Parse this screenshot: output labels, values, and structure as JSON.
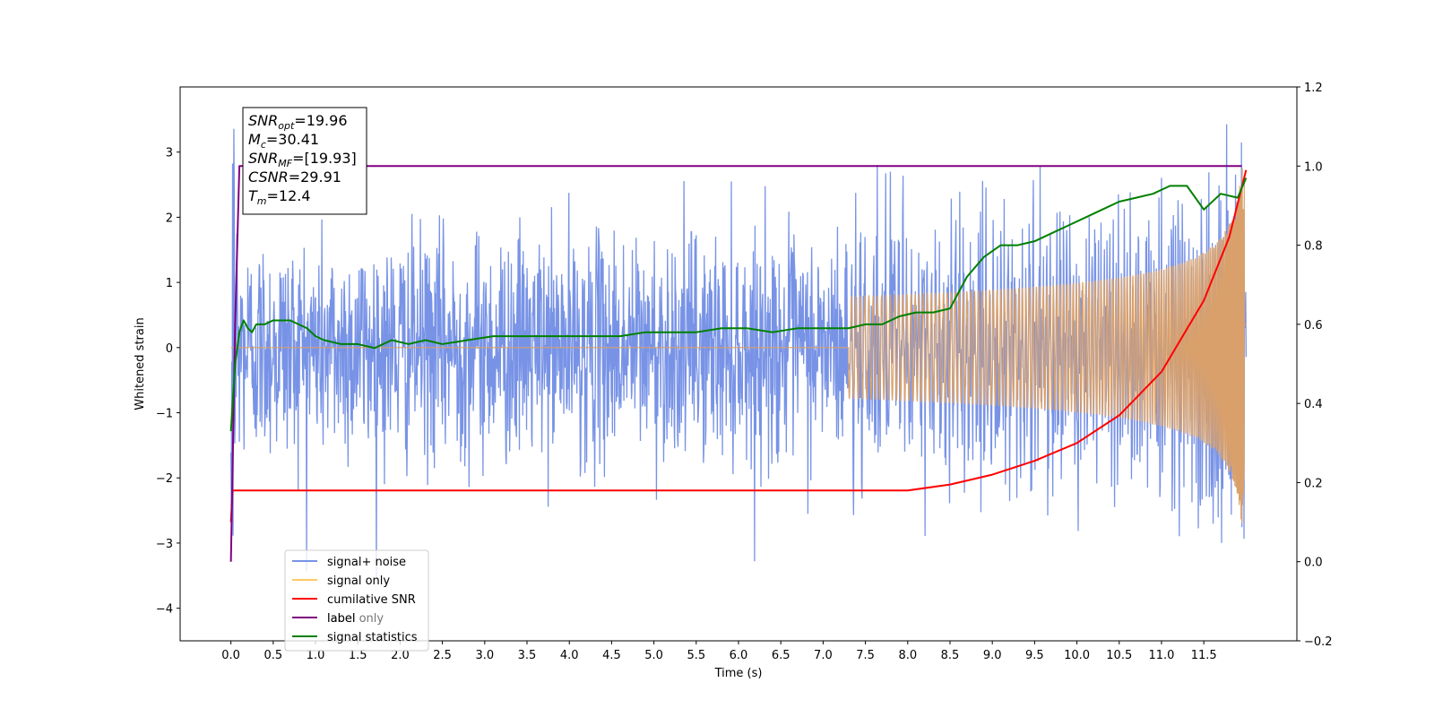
{
  "chart_data": {
    "type": "line",
    "xlabel": "Time (s)",
    "ylabel_left": "Whitened strain",
    "ylabel_right": "",
    "xlim": [
      -0.6,
      12.6
    ],
    "ylim_left": [
      -4.5,
      4.0
    ],
    "ylim_right": [
      -0.2,
      1.2
    ],
    "x_ticks": [
      "0.0",
      "0.5",
      "1.0",
      "1.5",
      "2.0",
      "2.5",
      "3.0",
      "3.5",
      "4.0",
      "4.5",
      "5.0",
      "5.5",
      "6.0",
      "6.5",
      "7.0",
      "7.5",
      "8.0",
      "8.5",
      "9.0",
      "9.5",
      "10.0",
      "10.5",
      "11.0",
      "11.5"
    ],
    "y_ticks_left": [
      "3",
      "2",
      "1",
      "0",
      "−1",
      "−2",
      "−3",
      "−4"
    ],
    "y_ticks_right": [
      "1.2",
      "1.0",
      "0.8",
      "0.6",
      "0.4",
      "0.2",
      "0.0",
      "−0.2"
    ],
    "legend_position": "lower-left",
    "legend_entries": [
      "signal+ noise",
      "signal only",
      "cumilative SNR",
      "label",
      "signal statistics"
    ],
    "overlapped_legend_text": "label only",
    "annotation": {
      "lines": [
        {
          "label": "SNR",
          "sub": "opt",
          "value": "=19.96"
        },
        {
          "label": "M",
          "sub": "c",
          "value": "=30.41"
        },
        {
          "label": "SNR",
          "sub": "MF",
          "value": "=[19.93]"
        },
        {
          "label": "CSNR",
          "sub": "",
          "value": "=29.91"
        },
        {
          "label": "T",
          "sub": "m",
          "value": "=12.4"
        }
      ]
    },
    "series": [
      {
        "name": "signal+ noise",
        "axis": "left",
        "color": "#7893e6",
        "duration": 12.0,
        "noise_sigma": 0.85,
        "max_abs": 3.6
      },
      {
        "name": "signal only",
        "axis": "left",
        "color": "#d9a06b",
        "chirp_start": 7.3,
        "end_amplitude": 2.8
      },
      {
        "name": "cumilative SNR",
        "axis": "right",
        "color": "#ff0000",
        "x": [
          0.0,
          0.02,
          8.0,
          8.5,
          9.0,
          9.5,
          10.0,
          10.5,
          11.0,
          11.5,
          11.8,
          12.0
        ],
        "y": [
          0.1,
          0.18,
          0.18,
          0.195,
          0.22,
          0.255,
          0.3,
          0.37,
          0.48,
          0.66,
          0.82,
          0.99
        ]
      },
      {
        "name": "label",
        "axis": "right",
        "color": "#800080",
        "x": [
          0.0,
          0.05,
          0.1,
          11.0,
          11.95
        ],
        "y": [
          0.0,
          0.6,
          1.0,
          1.0,
          1.0
        ]
      },
      {
        "name": "signal statistics",
        "axis": "right",
        "color": "#008000",
        "x": [
          0.0,
          0.05,
          0.1,
          0.15,
          0.2,
          0.25,
          0.3,
          0.4,
          0.5,
          0.6,
          0.7,
          0.8,
          0.9,
          1.0,
          1.1,
          1.3,
          1.5,
          1.7,
          1.9,
          2.1,
          2.3,
          2.5,
          2.8,
          3.1,
          3.4,
          3.7,
          4.0,
          4.3,
          4.6,
          4.9,
          5.2,
          5.5,
          5.8,
          6.1,
          6.4,
          6.7,
          7.0,
          7.3,
          7.5,
          7.7,
          7.9,
          8.1,
          8.3,
          8.5,
          8.7,
          8.9,
          9.1,
          9.3,
          9.5,
          9.7,
          9.9,
          10.1,
          10.3,
          10.5,
          10.7,
          10.9,
          11.1,
          11.3,
          11.5,
          11.7,
          11.9,
          12.0
        ],
        "y": [
          0.33,
          0.5,
          0.58,
          0.61,
          0.59,
          0.58,
          0.6,
          0.6,
          0.61,
          0.61,
          0.61,
          0.6,
          0.59,
          0.57,
          0.56,
          0.55,
          0.55,
          0.54,
          0.56,
          0.55,
          0.56,
          0.55,
          0.56,
          0.57,
          0.57,
          0.57,
          0.57,
          0.57,
          0.57,
          0.58,
          0.58,
          0.58,
          0.59,
          0.59,
          0.58,
          0.59,
          0.59,
          0.59,
          0.6,
          0.6,
          0.62,
          0.63,
          0.63,
          0.64,
          0.72,
          0.77,
          0.8,
          0.8,
          0.81,
          0.83,
          0.85,
          0.87,
          0.89,
          0.91,
          0.92,
          0.93,
          0.95,
          0.95,
          0.89,
          0.93,
          0.92,
          0.97
        ]
      }
    ]
  }
}
